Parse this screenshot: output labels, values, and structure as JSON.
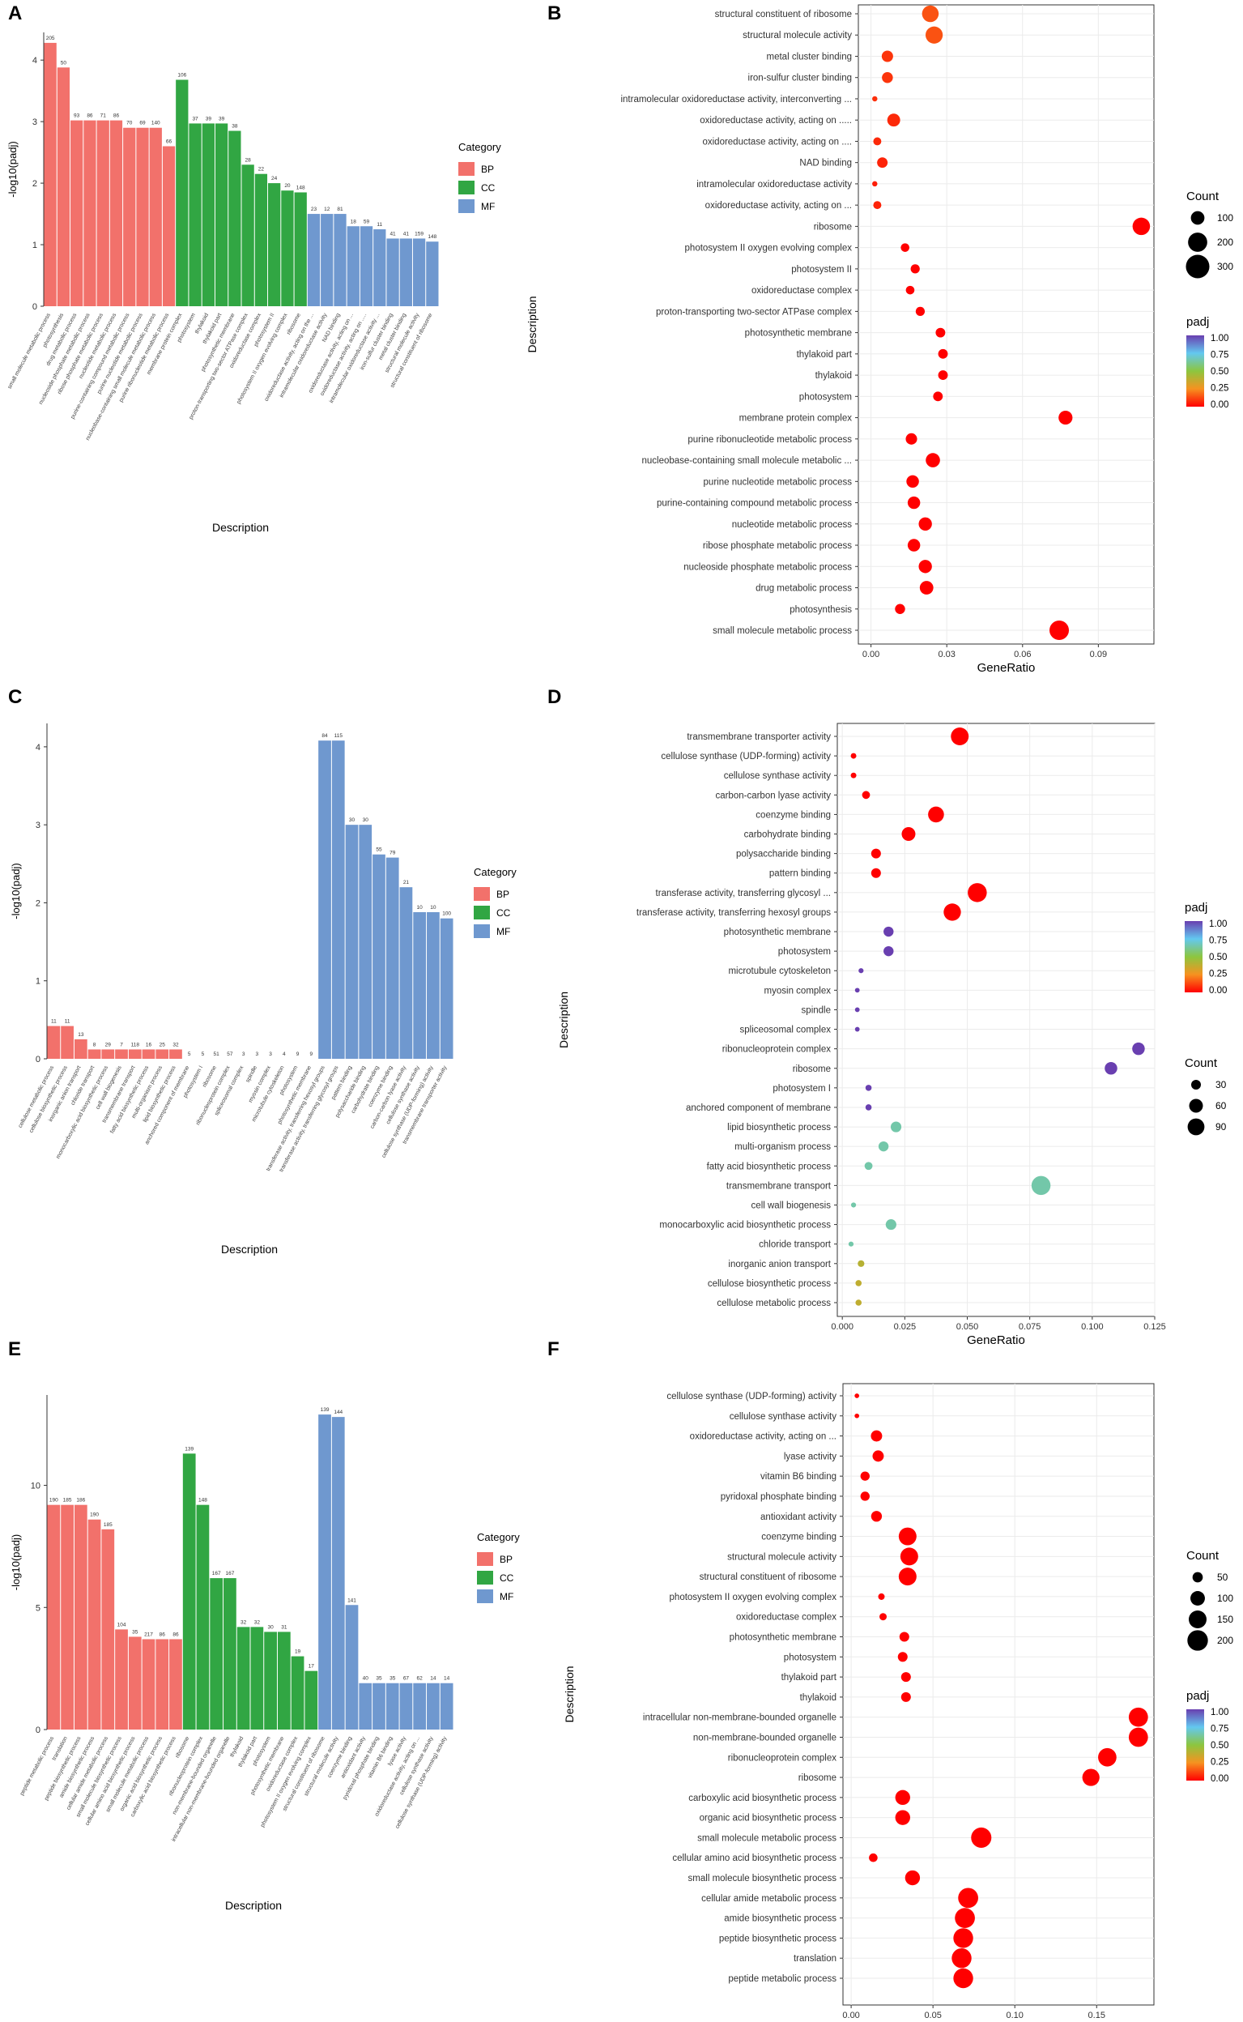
{
  "colors": {
    "BP": "#f2716b",
    "CC": "#31a643",
    "MF": "#6f98cf"
  },
  "legend_category": {
    "title": "Category",
    "items": [
      "BP",
      "CC",
      "MF"
    ]
  },
  "legend_count_title": "Count",
  "legend_padj": {
    "title": "padj",
    "ticks": [
      "1.00",
      "0.75",
      "0.50",
      "0.25",
      "0.00"
    ]
  },
  "bar_axis": {
    "ylabel": "-log10(padj)",
    "xlabel": "Description"
  },
  "dot_axis": {
    "xlabel": "GeneRatio",
    "ylabel": "Description"
  },
  "chart_data": [
    {
      "panel": "A",
      "type": "bar",
      "xlabel": "Description",
      "ylabel": "-log10(padj)",
      "ylim": [
        0,
        4.45
      ],
      "yticks": [
        0,
        1,
        2,
        3,
        4
      ],
      "legend": "Category",
      "categories": [
        "small molecule metabolic process",
        "photosynthesis",
        "drug metabolic process",
        "nucleoside phosphate metabolic process",
        "ribose phosphate metabolic process",
        "nucleotide metabolic process",
        "purine-containing compound metabolic process",
        "purine nucleotide metabolic process",
        "nucleobase-containing small molecule metabolic process",
        "purine ribonucleotide metabolic process",
        "membrane protein complex",
        "photosystem",
        "thylakoid",
        "thylakoid part",
        "photosynthetic membrane",
        "proton-transporting two-sector ATPase complex",
        "oxidoreductase complex",
        "photosystem II",
        "photosystem II oxygen evolving complex",
        "ribosome",
        "oxidoreductase activity, acting on the ...",
        "intramolecular oxidoreductase activity",
        "NAD binding",
        "oxidoreductase activity, acting on ...",
        "oxidoreductase activity, acting on .....",
        "intramolecular oxidoreductase activity ...",
        "iron-sulfur cluster binding",
        "metal cluster binding",
        "structural molecule activity",
        "structural constituent of ribosome"
      ],
      "groups": [
        "BP",
        "BP",
        "BP",
        "BP",
        "BP",
        "BP",
        "BP",
        "BP",
        "BP",
        "BP",
        "CC",
        "CC",
        "CC",
        "CC",
        "CC",
        "CC",
        "CC",
        "CC",
        "CC",
        "CC",
        "MF",
        "MF",
        "MF",
        "MF",
        "MF",
        "MF",
        "MF",
        "MF",
        "MF",
        "MF"
      ],
      "values": [
        4.28,
        3.88,
        3.02,
        3.02,
        3.02,
        3.02,
        2.9,
        2.9,
        2.9,
        2.6,
        3.68,
        2.97,
        2.97,
        2.97,
        2.85,
        2.3,
        2.15,
        2.0,
        1.88,
        1.85,
        1.5,
        1.5,
        1.5,
        1.3,
        1.3,
        1.25,
        1.1,
        1.1,
        1.1,
        1.05
      ],
      "labels": [
        "205",
        "50",
        "93",
        "86",
        "71",
        "86",
        "70",
        "69",
        "140",
        "66",
        "106",
        "37",
        "39",
        "39",
        "38",
        "28",
        "22",
        "24",
        "20",
        "148",
        "23",
        "12",
        "81",
        "18",
        "59",
        "11",
        "41",
        "41",
        "159",
        "148"
      ]
    },
    {
      "panel": "B",
      "type": "scatter",
      "xlabel": "GeneRatio",
      "ylabel": "Description",
      "xlim": [
        -0.005,
        0.112
      ],
      "xticks": [
        0,
        0.03,
        0.06,
        0.09
      ],
      "xtick_labels": [
        "0.00",
        "0.03",
        "0.06",
        "0.09"
      ],
      "count_legend": {
        "values": [
          100,
          200,
          300
        ]
      },
      "count_max": 320,
      "terms": [
        "structural constituent of ribosome",
        "structural molecule activity",
        "metal cluster binding",
        "iron-sulfur cluster binding",
        "intramolecular oxidoreductase activity, interconverting ...",
        "oxidoreductase activity, acting on .....",
        "oxidoreductase activity, acting on ....",
        "NAD binding",
        "intramolecular oxidoreductase activity",
        "oxidoreductase activity, acting on ...",
        "ribosome",
        "photosystem II oxygen evolving complex",
        "photosystem II",
        "oxidoreductase complex",
        "proton-transporting two-sector ATPase complex",
        "photosynthetic membrane",
        "thylakoid part",
        "thylakoid",
        "photosystem",
        "membrane protein complex",
        "purine ribonucleotide metabolic process",
        "nucleobase-containing small molecule metabolic ...",
        "purine nucleotide metabolic process",
        "purine-containing compound metabolic process",
        "nucleotide metabolic process",
        "ribose phosphate metabolic process",
        "nucleoside phosphate metabolic process",
        "drug metabolic process",
        "photosynthesis",
        "small molecule metabolic process"
      ],
      "gene_ratio": [
        0.0235,
        0.025,
        0.0065,
        0.0065,
        0.0015,
        0.009,
        0.0025,
        0.0045,
        0.0015,
        0.0025,
        0.107,
        0.0135,
        0.0175,
        0.0155,
        0.0195,
        0.0275,
        0.0285,
        0.0285,
        0.0265,
        0.077,
        0.016,
        0.0245,
        0.0165,
        0.017,
        0.0215,
        0.017,
        0.0215,
        0.022,
        0.0115,
        0.0745
      ],
      "count": [
        150,
        160,
        70,
        65,
        15,
        90,
        35,
        60,
        15,
        35,
        165,
        40,
        45,
        40,
        45,
        50,
        50,
        50,
        50,
        105,
        70,
        110,
        85,
        85,
        95,
        85,
        95,
        100,
        55,
        205
      ],
      "padj": [
        0.14,
        0.14,
        0.09,
        0.09,
        0.08,
        0.07,
        0.07,
        0.06,
        0.05,
        0.06,
        0.0,
        0.0,
        0.0,
        0.0,
        0.0,
        0.0,
        0.0,
        0.0,
        0.0,
        0.0,
        0.0,
        0.0,
        0.0,
        0.0,
        0.0,
        0.0,
        0.0,
        0.0,
        0.0,
        0.0
      ]
    },
    {
      "panel": "C",
      "type": "bar",
      "xlabel": "Description",
      "ylabel": "-log10(padj)",
      "ylim": [
        0,
        4.3
      ],
      "yticks": [
        0,
        1,
        2,
        3,
        4
      ],
      "legend": "Category",
      "categories": [
        "cellulose metabolic process",
        "cellulose biosynthetic process",
        "inorganic anion transport",
        "chloride transport",
        "monocarboxylic acid biosynthetic process",
        "cell wall biogenesis",
        "transmembrane transport",
        "fatty acid biosynthetic process",
        "multi-organism process",
        "lipid biosynthetic process",
        "anchored component of membrane",
        "photosystem I",
        "ribosome",
        "ribonucleoprotein complex",
        "spliceosomal complex",
        "spindle",
        "myosin complex",
        "microtubule cytoskeleton",
        "photosystem",
        "photosynthetic membrane",
        "transferase activity, transferring hexosyl groups",
        "transferase activity, transferring glycosyl groups",
        "pattern binding",
        "polysaccharide binding",
        "carbohydrate binding",
        "coenzyme binding",
        "carbon-carbon lyase activity",
        "cellulose synthase activity",
        "cellulose synthase (UDP-forming) activity",
        "transmembrane transporter activity"
      ],
      "groups": [
        "BP",
        "BP",
        "BP",
        "BP",
        "BP",
        "BP",
        "BP",
        "BP",
        "BP",
        "BP",
        "CC",
        "CC",
        "CC",
        "CC",
        "CC",
        "CC",
        "CC",
        "CC",
        "CC",
        "CC",
        "MF",
        "MF",
        "MF",
        "MF",
        "MF",
        "MF",
        "MF",
        "MF",
        "MF",
        "MF"
      ],
      "values": [
        0.42,
        0.42,
        0.25,
        0.12,
        0.12,
        0.12,
        0.12,
        0.12,
        0.12,
        0.12,
        0,
        0,
        0,
        0,
        0,
        0,
        0,
        0,
        0,
        0,
        4.08,
        4.08,
        3.0,
        3.0,
        2.62,
        2.58,
        2.2,
        1.88,
        1.88,
        1.8
      ],
      "labels": [
        "11",
        "11",
        "13",
        "8",
        "29",
        "7",
        "118",
        "16",
        "25",
        "32",
        "5",
        "5",
        "51",
        "57",
        "3",
        "3",
        "3",
        "4",
        "9",
        "9",
        "84",
        "115",
        "30",
        "30",
        "55",
        "79",
        "21",
        "10",
        "10",
        "100"
      ]
    },
    {
      "panel": "D",
      "type": "scatter",
      "xlabel": "GeneRatio",
      "ylabel": "Description",
      "xlim": [
        -0.002,
        0.125
      ],
      "xticks": [
        0,
        0.025,
        0.05,
        0.075,
        0.1,
        0.125
      ],
      "xtick_labels": [
        "0.000",
        "0.025",
        "0.050",
        "0.075",
        "0.100",
        "0.125"
      ],
      "count_legend": {
        "values": [
          30,
          60,
          90
        ]
      },
      "count_max": 120,
      "terms": [
        "transmembrane transporter activity",
        "cellulose synthase (UDP-forming) activity",
        "cellulose synthase activity",
        "carbon-carbon lyase activity",
        "coenzyme binding",
        "carbohydrate binding",
        "polysaccharide binding",
        "pattern binding",
        "transferase activity, transferring glycosyl ...",
        "transferase activity, transferring hexosyl groups",
        "photosynthetic membrane",
        "photosystem",
        "microtubule cytoskeleton",
        "myosin complex",
        "spindle",
        "spliceosomal complex",
        "ribonucleoprotein complex",
        "ribosome",
        "photosystem I",
        "anchored component of membrane",
        "lipid biosynthetic process",
        "multi-organism process",
        "fatty acid biosynthetic process",
        "transmembrane transport",
        "cell wall biogenesis",
        "monocarboxylic acid biosynthetic process",
        "chloride transport",
        "inorganic anion transport",
        "cellulose biosynthetic process",
        "cellulose metabolic process"
      ],
      "gene_ratio": [
        0.047,
        0.0045,
        0.0045,
        0.0095,
        0.0375,
        0.0265,
        0.0135,
        0.0135,
        0.054,
        0.044,
        0.0185,
        0.0185,
        0.0075,
        0.006,
        0.006,
        0.006,
        0.1185,
        0.1075,
        0.0105,
        0.0105,
        0.0215,
        0.0165,
        0.0105,
        0.0795,
        0.0045,
        0.0195,
        0.0035,
        0.0075,
        0.0065,
        0.0065
      ],
      "count": [
        100,
        10,
        10,
        20,
        80,
        60,
        30,
        30,
        115,
        95,
        32,
        32,
        8,
        7,
        7,
        7,
        50,
        50,
        12,
        12,
        36,
        32,
        20,
        115,
        8,
        36,
        8,
        14,
        12,
        12
      ],
      "padj": [
        0.0,
        0.0,
        0.0,
        0.0,
        0.0,
        0.0,
        0.0,
        0.0,
        0.0,
        0.0,
        1.0,
        1.0,
        1.0,
        1.0,
        1.0,
        1.0,
        1.0,
        1.0,
        1.0,
        1.0,
        0.65,
        0.65,
        0.65,
        0.65,
        0.65,
        0.65,
        0.65,
        0.4,
        0.38,
        0.38
      ]
    },
    {
      "panel": "E",
      "type": "bar",
      "xlabel": "Description",
      "ylabel": "-log10(padj)",
      "ylim": [
        0,
        13.7
      ],
      "yticks": [
        0,
        5,
        10
      ],
      "legend": "Category",
      "categories": [
        "peptide metabolic process",
        "translation",
        "peptide biosynthetic process",
        "amide biosynthetic process",
        "cellular amide metabolic process",
        "small molecule biosynthetic process",
        "cellular amino acid biosynthetic process",
        "small molecule metabolic process",
        "organic acid biosynthetic process",
        "carboxylic acid biosynthetic process",
        "ribosome",
        "ribonucleoprotein complex",
        "non-membrane-bounded organelle",
        "intracellular non-membrane-bounded organelle",
        "thylakoid",
        "thylakoid part",
        "photosystem",
        "photosynthetic membrane",
        "oxidoreductase complex",
        "photosystem II oxygen evolving complex",
        "structural constituent of ribosome",
        "structural molecule activity",
        "coenzyme binding",
        "antioxidant activity",
        "pyridoxal phosphate binding",
        "vitamin B6 binding",
        "lyase activity",
        "oxidoreductase activity, acting on ...",
        "cellulose synthase activity",
        "cellulose synthase (UDP-forming) activity"
      ],
      "groups": [
        "BP",
        "BP",
        "BP",
        "BP",
        "BP",
        "BP",
        "BP",
        "BP",
        "BP",
        "BP",
        "CC",
        "CC",
        "CC",
        "CC",
        "CC",
        "CC",
        "CC",
        "CC",
        "CC",
        "CC",
        "MF",
        "MF",
        "MF",
        "MF",
        "MF",
        "MF",
        "MF",
        "MF",
        "MF",
        "MF"
      ],
      "values": [
        9.2,
        9.2,
        9.2,
        8.6,
        8.2,
        4.1,
        3.8,
        3.7,
        3.7,
        3.7,
        11.3,
        9.2,
        6.2,
        6.2,
        4.2,
        4.2,
        4.0,
        4.0,
        3.0,
        2.4,
        12.9,
        12.8,
        5.1,
        1.9,
        1.9,
        1.9,
        1.9,
        1.9,
        1.9,
        1.9
      ],
      "labels": [
        "190",
        "185",
        "186",
        "190",
        "185",
        "104",
        "35",
        "217",
        "86",
        "86",
        "139",
        "148",
        "167",
        "167",
        "32",
        "32",
        "30",
        "31",
        "19",
        "17",
        "139",
        "144",
        "141",
        "40",
        "35",
        "35",
        "67",
        "62",
        "14",
        "14"
      ]
    },
    {
      "panel": "F",
      "type": "scatter",
      "xlabel": "GeneRatio",
      "ylabel": "Description",
      "xlim": [
        -0.005,
        0.185
      ],
      "xticks": [
        0,
        0.05,
        0.1,
        0.15
      ],
      "xtick_labels": [
        "0.00",
        "0.05",
        "0.10",
        "0.15"
      ],
      "count_legend": {
        "values": [
          50,
          100,
          150,
          200
        ]
      },
      "count_max": 210,
      "terms": [
        "cellulose synthase (UDP-forming) activity",
        "cellulose synthase activity",
        "oxidoreductase activity, acting on ...",
        "lyase activity",
        "vitamin B6 binding",
        "pyridoxal phosphate binding",
        "antioxidant activity",
        "coenzyme binding",
        "structural molecule activity",
        "structural constituent of ribosome",
        "photosystem II oxygen evolving complex",
        "oxidoreductase complex",
        "photosynthetic membrane",
        "photosystem",
        "thylakoid part",
        "thylakoid",
        "intracellular non-membrane-bounded organelle",
        "non-membrane-bounded organelle",
        "ribonucleoprotein complex",
        "ribosome",
        "carboxylic acid biosynthetic process",
        "organic acid biosynthetic process",
        "small molecule metabolic process",
        "cellular amino acid biosynthetic process",
        "small molecule biosynthetic process",
        "cellular amide metabolic process",
        "amide biosynthetic process",
        "peptide biosynthetic process",
        "translation",
        "peptide metabolic process"
      ],
      "gene_ratio": [
        0.0035,
        0.0035,
        0.0155,
        0.0165,
        0.0085,
        0.0085,
        0.0155,
        0.0345,
        0.0355,
        0.0345,
        0.0185,
        0.0195,
        0.0325,
        0.0315,
        0.0335,
        0.0335,
        0.1755,
        0.1755,
        0.1565,
        0.1465,
        0.0315,
        0.0315,
        0.0795,
        0.0135,
        0.0375,
        0.0715,
        0.0695,
        0.0685,
        0.0675,
        0.0685
      ],
      "count": [
        10,
        10,
        60,
        60,
        40,
        40,
        55,
        150,
        150,
        150,
        20,
        25,
        45,
        45,
        45,
        45,
        175,
        175,
        160,
        140,
        105,
        105,
        195,
        35,
        105,
        190,
        190,
        185,
        185,
        185
      ],
      "padj": [
        0.0,
        0.0,
        0.0,
        0.0,
        0.0,
        0.0,
        0.0,
        0.0,
        0.0,
        0.0,
        0.0,
        0.0,
        0.0,
        0.0,
        0.0,
        0.0,
        0.0,
        0.0,
        0.0,
        0.0,
        0.0,
        0.0,
        0.0,
        0.0,
        0.0,
        0.0,
        0.0,
        0.0,
        0.0,
        0.0
      ]
    }
  ]
}
